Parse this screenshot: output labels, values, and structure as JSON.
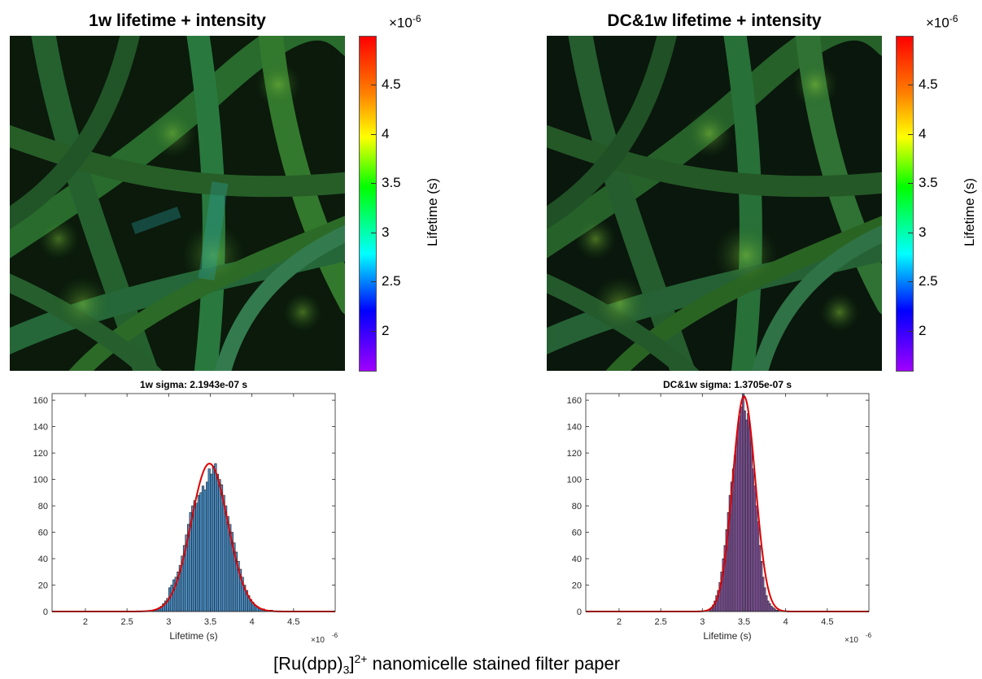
{
  "figure": {
    "caption_main": "[Ru(dpp)",
    "caption_sub": "3",
    "caption_bracket": "]",
    "caption_sup": "2+",
    "caption_rest": " nanomicelle stained filter paper"
  },
  "colorbar": {
    "label": "Lifetime (s)",
    "exponent_prefix": "×10",
    "exponent": "-6",
    "ticks": [
      "4.5",
      "4",
      "3.5",
      "3",
      "2.5",
      "2"
    ],
    "tick_values": [
      4.5,
      4.0,
      3.5,
      3.0,
      2.5,
      2.0
    ],
    "range": [
      1.6,
      5.0
    ],
    "colormap": [
      "#ff0000",
      "#ff8000",
      "#ffff00",
      "#00ff00",
      "#00ffff",
      "#0000ff",
      "#a000ff"
    ]
  },
  "images": [
    {
      "title": "1w lifetime + intensity",
      "accent": "#3c9a2e"
    },
    {
      "title": "DC&1w lifetime + intensity",
      "accent": "#2f8a2c"
    }
  ],
  "chart_data": [
    {
      "type": "bar",
      "title": "1w sigma: 2.1943e-07 s",
      "xlabel": "Lifetime (s)",
      "ylabel": "",
      "x_exponent": "×10-6",
      "xlim": [
        1.6,
        5.0
      ],
      "ylim": [
        0,
        165
      ],
      "xticks": [
        "2",
        "2.5",
        "3",
        "3.5",
        "4",
        "4.5"
      ],
      "yticks": [
        "0",
        "20",
        "40",
        "60",
        "80",
        "100",
        "120",
        "140",
        "160"
      ],
      "bar_color": "#4a8fc7",
      "fit_color": "#e00000",
      "fit": {
        "mean": 3.49,
        "sigma": 0.2194,
        "peak": 112
      },
      "bin_width": 0.025,
      "x": [
        2.8,
        2.825,
        2.85,
        2.875,
        2.9,
        2.925,
        2.95,
        2.975,
        3.0,
        3.025,
        3.05,
        3.075,
        3.1,
        3.125,
        3.15,
        3.175,
        3.2,
        3.225,
        3.25,
        3.275,
        3.3,
        3.325,
        3.35,
        3.375,
        3.4,
        3.425,
        3.45,
        3.475,
        3.5,
        3.525,
        3.55,
        3.575,
        3.6,
        3.625,
        3.65,
        3.675,
        3.7,
        3.725,
        3.75,
        3.775,
        3.8,
        3.825,
        3.85,
        3.875,
        3.9,
        3.925,
        3.95,
        3.975,
        4.0,
        4.025,
        4.05,
        4.075,
        4.1,
        4.125,
        4.15,
        4.175,
        4.2,
        4.225
      ],
      "values": [
        1,
        1,
        2,
        3,
        4,
        6,
        8,
        10,
        18,
        20,
        24,
        26,
        30,
        35,
        42,
        50,
        58,
        66,
        75,
        80,
        84,
        82,
        88,
        90,
        95,
        92,
        98,
        108,
        104,
        110,
        112,
        104,
        100,
        96,
        88,
        80,
        72,
        66,
        60,
        52,
        45,
        38,
        32,
        26,
        20,
        16,
        12,
        9,
        7,
        5,
        4,
        3,
        2,
        2,
        1,
        1,
        1,
        1
      ]
    },
    {
      "type": "bar",
      "title": "DC&1w sigma: 1.3705e-07 s",
      "xlabel": "Lifetime (s)",
      "ylabel": "",
      "x_exponent": "×10-6",
      "xlim": [
        1.6,
        5.0
      ],
      "ylim": [
        0,
        165
      ],
      "xticks": [
        "2",
        "2.5",
        "3",
        "3.5",
        "4",
        "4.5"
      ],
      "yticks": [
        "0",
        "20",
        "40",
        "60",
        "80",
        "100",
        "120",
        "140",
        "160"
      ],
      "bar_color": "#8a5aa6",
      "fit_color": "#e00000",
      "fit": {
        "mean": 3.5,
        "sigma": 0.137,
        "peak": 163
      },
      "bin_width": 0.02,
      "x": [
        3.08,
        3.1,
        3.12,
        3.14,
        3.16,
        3.18,
        3.2,
        3.22,
        3.24,
        3.26,
        3.28,
        3.3,
        3.32,
        3.34,
        3.36,
        3.38,
        3.4,
        3.42,
        3.44,
        3.46,
        3.48,
        3.5,
        3.52,
        3.54,
        3.56,
        3.58,
        3.6,
        3.62,
        3.64,
        3.66,
        3.68,
        3.7,
        3.72,
        3.74,
        3.76,
        3.78,
        3.8,
        3.82,
        3.84,
        3.86,
        3.88,
        3.9
      ],
      "values": [
        2,
        3,
        5,
        8,
        12,
        16,
        22,
        30,
        40,
        50,
        62,
        75,
        88,
        98,
        108,
        118,
        128,
        140,
        148,
        155,
        168,
        152,
        145,
        150,
        140,
        128,
        108,
        95,
        80,
        68,
        50,
        38,
        26,
        18,
        12,
        8,
        6,
        4,
        3,
        2,
        1,
        1
      ]
    }
  ]
}
